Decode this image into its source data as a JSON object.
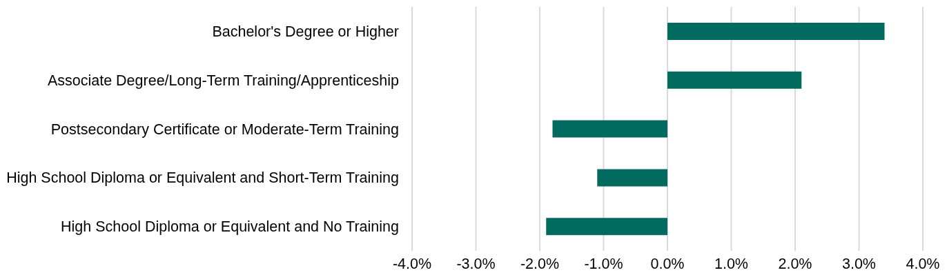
{
  "chart_data": {
    "type": "bar",
    "orientation": "horizontal",
    "categories": [
      "Bachelor's Degree or Higher",
      "Associate Degree/Long-Term Training/Apprenticeship",
      "Postsecondary Certificate or Moderate-Term Training",
      "High School Diploma or Equivalent and Short-Term Training",
      "High School Diploma or Equivalent and No Training"
    ],
    "values": [
      3.4,
      2.1,
      -1.8,
      -1.1,
      -1.9
    ],
    "color": "#006b5e",
    "xlim": [
      -4,
      4
    ],
    "xticks": [
      {
        "value": -4,
        "label": "-4.0%"
      },
      {
        "value": -3,
        "label": "-3.0%"
      },
      {
        "value": -2,
        "label": "-2.0%"
      },
      {
        "value": -1,
        "label": "-1.0%"
      },
      {
        "value": 0,
        "label": "0.0%"
      },
      {
        "value": 1,
        "label": "1.0%"
      },
      {
        "value": 2,
        "label": "2.0%"
      },
      {
        "value": 3,
        "label": "3.0%"
      },
      {
        "value": 4,
        "label": "4.0%"
      }
    ],
    "grid": "x"
  }
}
